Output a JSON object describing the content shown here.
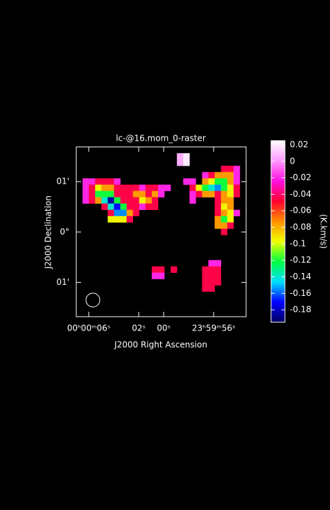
{
  "chart_data": {
    "type": "raster",
    "title": "lc-@16.mom_0-raster",
    "x_label": "J2000 Right Ascension",
    "y_label": "J2000 Declination",
    "colorbar_label": "(K.km/s)",
    "xlim": [
      7,
      -6.6
    ],
    "xticks": [
      {
        "value": 6,
        "label": "00ʰ00ᵐ06ˢ"
      },
      {
        "value": 2,
        "label": "02ˢ"
      },
      {
        "value": 0,
        "label": "00ˢ"
      },
      {
        "value": -4,
        "label": "23ʰ59ᵐ56ˢ"
      }
    ],
    "ylim": [
      -1.68,
      1.69
    ],
    "yticks": [
      {
        "value": 1,
        "label": "01'"
      },
      {
        "value": 0,
        "label": "0°"
      },
      {
        "value": -1,
        "label": "01'"
      }
    ],
    "clim": [
      -0.195,
      0.025
    ],
    "cticks": [
      0.02,
      0,
      -0.02,
      -0.04,
      -0.06,
      -0.08,
      -0.1,
      -0.12,
      -0.14,
      -0.16,
      -0.18
    ],
    "colormap": [
      "#000060",
      "#0000ff",
      "#00e0ff",
      "#00ff40",
      "#f0ff00",
      "#ff9000",
      "#ff0030",
      "#ff10e0",
      "#ff99ff",
      "#ffffff"
    ],
    "cells": [
      [
        16,
        1,
        0.005
      ],
      [
        17,
        1,
        0.02
      ],
      [
        16,
        2,
        0.005
      ],
      [
        17,
        2,
        0.02
      ],
      [
        23,
        3,
        -0.045
      ],
      [
        24,
        3,
        -0.045
      ],
      [
        25,
        3,
        -0.02
      ],
      [
        20,
        4,
        -0.02
      ],
      [
        21,
        4,
        -0.045
      ],
      [
        22,
        4,
        -0.075
      ],
      [
        23,
        4,
        -0.075
      ],
      [
        24,
        4,
        -0.075
      ],
      [
        25,
        4,
        -0.02
      ],
      [
        17,
        5,
        -0.02
      ],
      [
        18,
        5,
        -0.02
      ],
      [
        20,
        5,
        -0.075
      ],
      [
        21,
        5,
        -0.095
      ],
      [
        22,
        5,
        -0.12
      ],
      [
        23,
        5,
        -0.12
      ],
      [
        24,
        5,
        -0.075
      ],
      [
        25,
        5,
        -0.02
      ],
      [
        1,
        5,
        -0.02
      ],
      [
        2,
        5,
        -0.02
      ],
      [
        3,
        5,
        -0.045
      ],
      [
        4,
        5,
        -0.045
      ],
      [
        5,
        5,
        -0.045
      ],
      [
        6,
        5,
        -0.02
      ],
      [
        1,
        6,
        -0.02
      ],
      [
        2,
        6,
        -0.045
      ],
      [
        3,
        6,
        -0.095
      ],
      [
        4,
        6,
        -0.075
      ],
      [
        5,
        6,
        -0.075
      ],
      [
        6,
        6,
        -0.045
      ],
      [
        7,
        6,
        -0.045
      ],
      [
        8,
        6,
        -0.045
      ],
      [
        9,
        6,
        -0.045
      ],
      [
        10,
        6,
        -0.02
      ],
      [
        11,
        6,
        -0.045
      ],
      [
        12,
        6,
        -0.045
      ],
      [
        13,
        6,
        -0.02
      ],
      [
        14,
        6,
        -0.02
      ],
      [
        18,
        6,
        -0.045
      ],
      [
        19,
        6,
        -0.095
      ],
      [
        20,
        6,
        -0.12
      ],
      [
        21,
        6,
        -0.14
      ],
      [
        22,
        6,
        -0.155
      ],
      [
        23,
        6,
        -0.12
      ],
      [
        24,
        6,
        -0.095
      ],
      [
        25,
        6,
        -0.045
      ],
      [
        1,
        7,
        -0.02
      ],
      [
        2,
        7,
        -0.045
      ],
      [
        3,
        7,
        -0.12
      ],
      [
        4,
        7,
        -0.12
      ],
      [
        5,
        7,
        -0.12
      ],
      [
        6,
        7,
        -0.045
      ],
      [
        7,
        7,
        -0.045
      ],
      [
        8,
        7,
        -0.045
      ],
      [
        9,
        7,
        -0.075
      ],
      [
        10,
        7,
        -0.075
      ],
      [
        11,
        7,
        -0.045
      ],
      [
        12,
        7,
        -0.075
      ],
      [
        13,
        7,
        -0.02
      ],
      [
        18,
        7,
        -0.02
      ],
      [
        19,
        7,
        -0.045
      ],
      [
        20,
        7,
        -0.075
      ],
      [
        21,
        7,
        -0.075
      ],
      [
        22,
        7,
        -0.045
      ],
      [
        23,
        7,
        -0.075
      ],
      [
        24,
        7,
        -0.095
      ],
      [
        25,
        7,
        -0.045
      ],
      [
        1,
        8,
        -0.02
      ],
      [
        2,
        8,
        -0.045
      ],
      [
        3,
        8,
        -0.075
      ],
      [
        4,
        8,
        -0.14
      ],
      [
        5,
        8,
        -0.185
      ],
      [
        6,
        8,
        -0.12
      ],
      [
        7,
        8,
        -0.045
      ],
      [
        8,
        8,
        -0.045
      ],
      [
        9,
        8,
        -0.045
      ],
      [
        10,
        8,
        -0.095
      ],
      [
        11,
        8,
        -0.075
      ],
      [
        12,
        8,
        -0.045
      ],
      [
        18,
        8,
        -0.02
      ],
      [
        22,
        8,
        -0.045
      ],
      [
        23,
        8,
        -0.075
      ],
      [
        24,
        8,
        -0.075
      ],
      [
        4,
        9,
        -0.045
      ],
      [
        5,
        9,
        -0.14
      ],
      [
        6,
        9,
        -0.17
      ],
      [
        7,
        9,
        -0.12
      ],
      [
        8,
        9,
        -0.045
      ],
      [
        9,
        9,
        -0.045
      ],
      [
        10,
        9,
        -0.02
      ],
      [
        11,
        9,
        -0.045
      ],
      [
        12,
        9,
        -0.045
      ],
      [
        22,
        9,
        -0.045
      ],
      [
        23,
        9,
        -0.095
      ],
      [
        24,
        9,
        -0.075
      ],
      [
        5,
        10,
        -0.045
      ],
      [
        6,
        10,
        -0.155
      ],
      [
        7,
        10,
        -0.155
      ],
      [
        8,
        10,
        -0.075
      ],
      [
        9,
        10,
        -0.045
      ],
      [
        22,
        10,
        -0.045
      ],
      [
        23,
        10,
        -0.075
      ],
      [
        24,
        10,
        -0.095
      ],
      [
        25,
        10,
        -0.02
      ],
      [
        5,
        11,
        -0.095
      ],
      [
        6,
        11,
        -0.095
      ],
      [
        7,
        11,
        -0.095
      ],
      [
        8,
        11,
        -0.045
      ],
      [
        22,
        11,
        -0.075
      ],
      [
        23,
        11,
        -0.12
      ],
      [
        24,
        11,
        -0.095
      ],
      [
        22,
        12,
        -0.075
      ],
      [
        23,
        12,
        -0.075
      ],
      [
        24,
        12,
        -0.045
      ],
      [
        23,
        13,
        -0.045
      ],
      [
        21,
        18,
        -0.02
      ],
      [
        22,
        18,
        -0.02
      ],
      [
        12,
        19,
        -0.045
      ],
      [
        13,
        19,
        -0.045
      ],
      [
        15,
        19,
        -0.045
      ],
      [
        20,
        19,
        -0.045
      ],
      [
        21,
        19,
        -0.045
      ],
      [
        22,
        19,
        -0.045
      ],
      [
        12,
        20,
        -0.02
      ],
      [
        13,
        20,
        -0.02
      ],
      [
        20,
        20,
        -0.045
      ],
      [
        21,
        20,
        -0.045
      ],
      [
        22,
        20,
        -0.045
      ],
      [
        20,
        21,
        -0.045
      ],
      [
        21,
        21,
        -0.045
      ],
      [
        22,
        21,
        -0.045
      ],
      [
        20,
        22,
        -0.045
      ],
      [
        21,
        22,
        -0.045
      ]
    ]
  }
}
